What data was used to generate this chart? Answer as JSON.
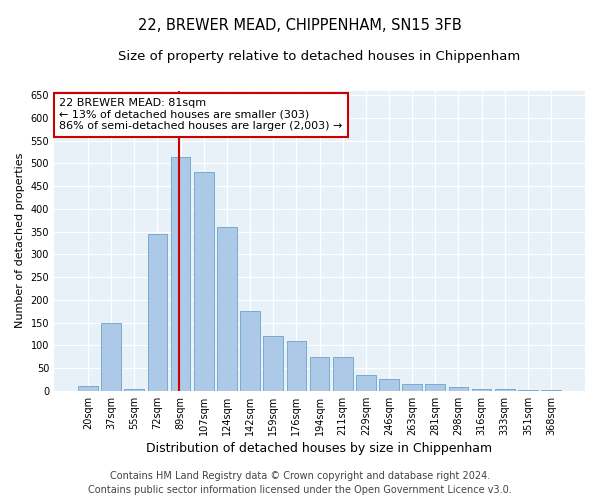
{
  "title_line1": "22, BREWER MEAD, CHIPPENHAM, SN15 3FB",
  "title_line2": "Size of property relative to detached houses in Chippenham",
  "xlabel": "Distribution of detached houses by size in Chippenham",
  "ylabel": "Number of detached properties",
  "categories": [
    "20sqm",
    "37sqm",
    "55sqm",
    "72sqm",
    "89sqm",
    "107sqm",
    "124sqm",
    "142sqm",
    "159sqm",
    "176sqm",
    "194sqm",
    "211sqm",
    "229sqm",
    "246sqm",
    "263sqm",
    "281sqm",
    "298sqm",
    "316sqm",
    "333sqm",
    "351sqm",
    "368sqm"
  ],
  "values": [
    10,
    150,
    5,
    345,
    515,
    480,
    360,
    175,
    120,
    110,
    75,
    75,
    35,
    25,
    15,
    15,
    8,
    5,
    3,
    2,
    2
  ],
  "bar_color": "#adc9e8",
  "bar_edge_color": "#7aaad0",
  "vline_x": 3.95,
  "vline_color": "#cc0000",
  "annotation_text": "22 BREWER MEAD: 81sqm\n← 13% of detached houses are smaller (303)\n86% of semi-detached houses are larger (2,003) →",
  "annotation_box_color": "#ffffff",
  "annotation_box_edge_color": "#cc0000",
  "ylim": [
    0,
    660
  ],
  "yticks": [
    0,
    50,
    100,
    150,
    200,
    250,
    300,
    350,
    400,
    450,
    500,
    550,
    600,
    650
  ],
  "bg_color": "#e8f0f8",
  "fig_bg_color": "#ffffff",
  "footer_line1": "Contains HM Land Registry data © Crown copyright and database right 2024.",
  "footer_line2": "Contains public sector information licensed under the Open Government Licence v3.0.",
  "title_fontsize": 10.5,
  "subtitle_fontsize": 9.5,
  "annotation_fontsize": 8,
  "footer_fontsize": 7,
  "ylabel_fontsize": 8,
  "xlabel_fontsize": 9,
  "tick_fontsize": 7
}
